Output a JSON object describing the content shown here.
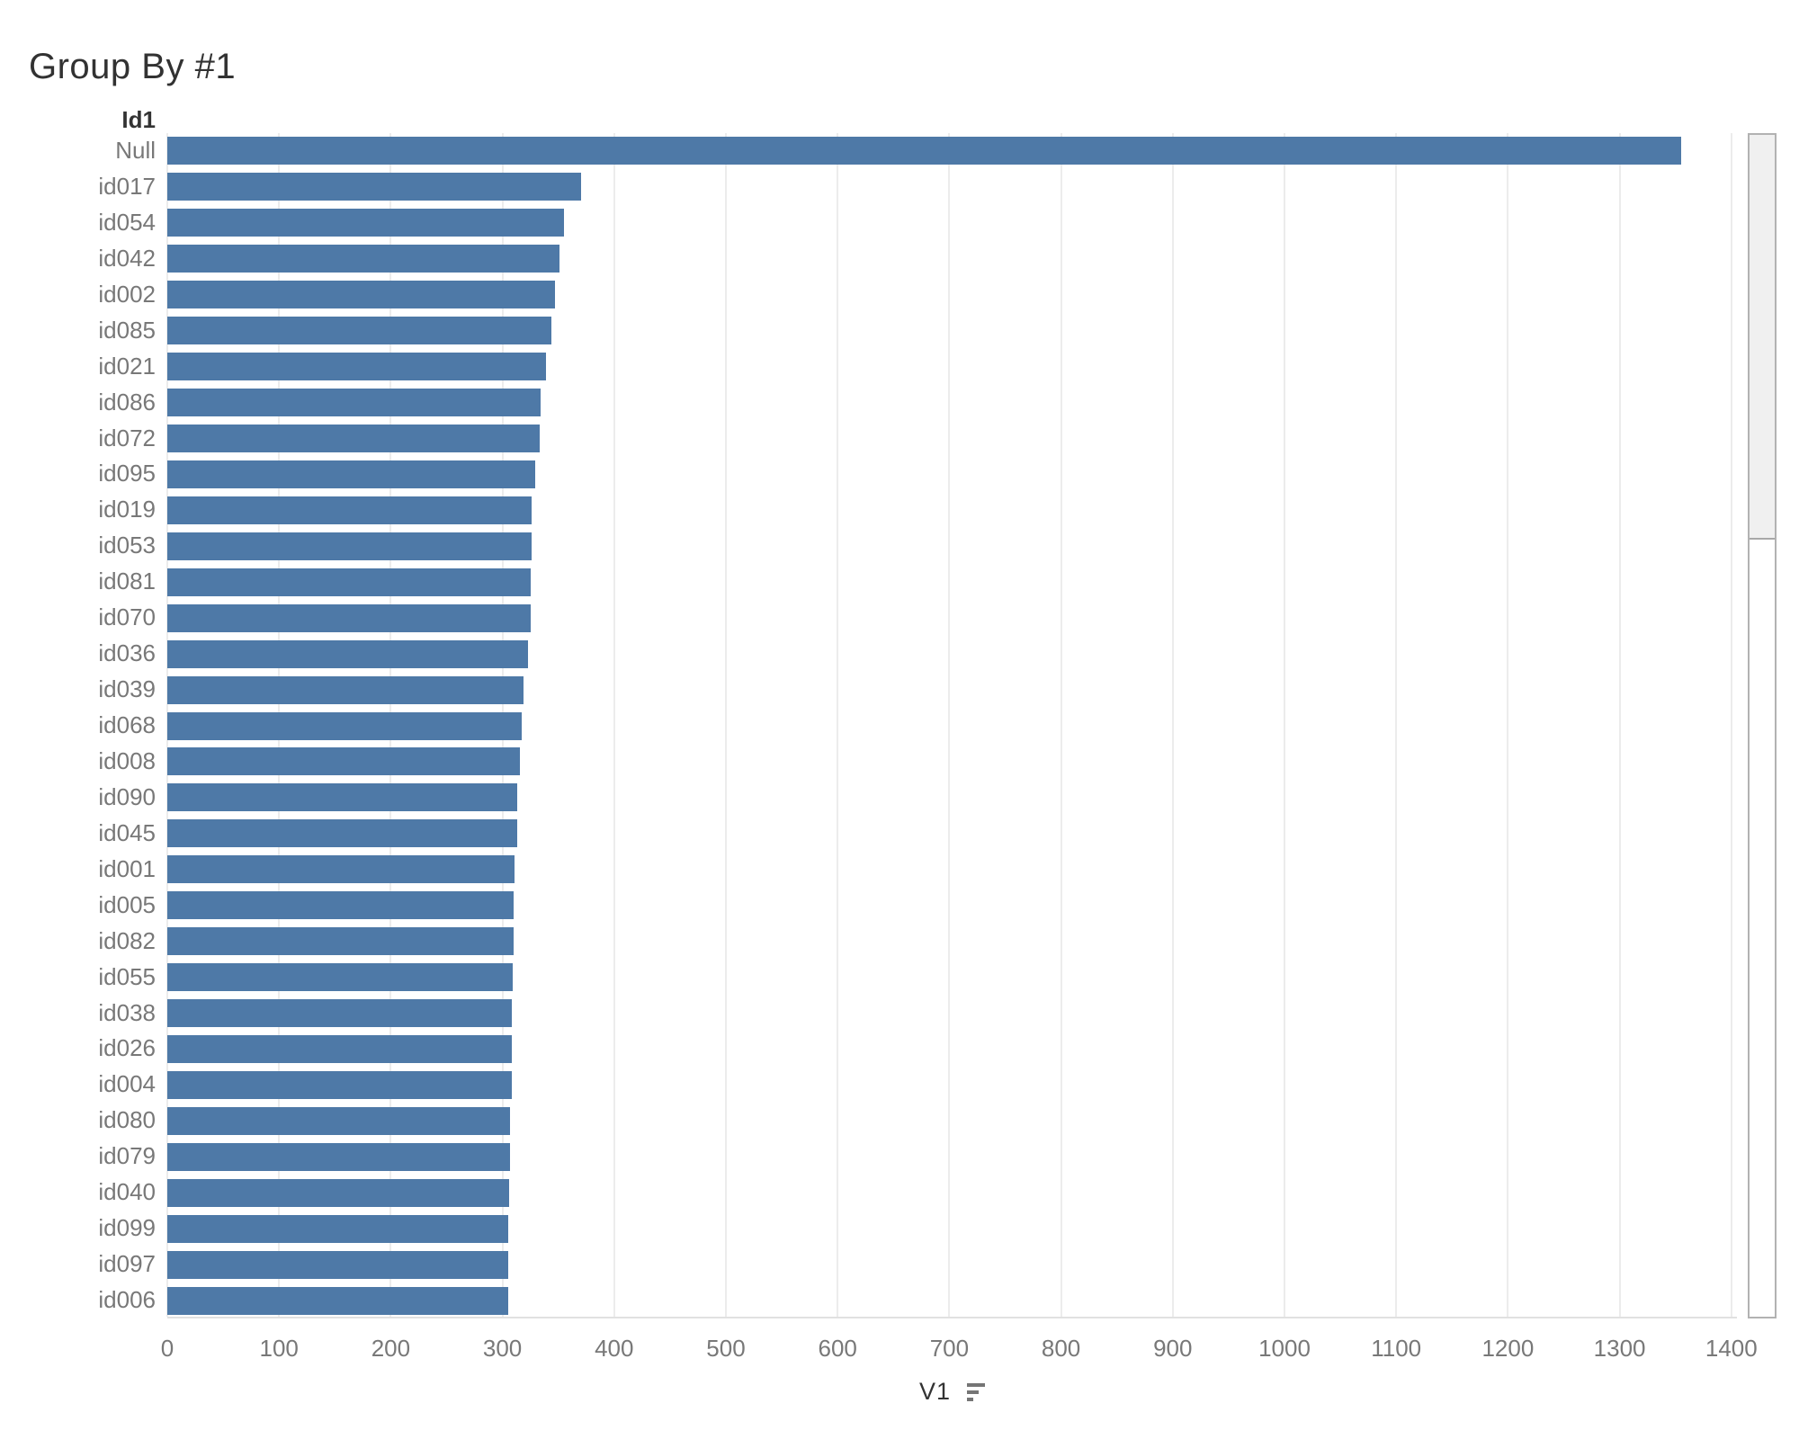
{
  "title": "Group By #1",
  "column_header": "Id1",
  "axis": {
    "label": "V1",
    "sort_icon": "sort-descending-icon"
  },
  "colors": {
    "bar": "#4e79a7",
    "gridline": "#ececec",
    "tick_text": "#787878",
    "row_label_text": "#787878",
    "header_text": "#333333",
    "title_text": "#323232"
  },
  "chart_data": {
    "type": "bar",
    "orientation": "horizontal",
    "title": "Group By #1",
    "xlabel": "V1",
    "ylabel": "Id1",
    "xlim": [
      0,
      1405
    ],
    "x_ticks": [
      0,
      100,
      200,
      300,
      400,
      500,
      600,
      700,
      800,
      900,
      1000,
      1100,
      1200,
      1300,
      1400
    ],
    "grid": true,
    "sort": "descending",
    "categories": [
      "Null",
      "id017",
      "id054",
      "id042",
      "id002",
      "id085",
      "id021",
      "id086",
      "id072",
      "id095",
      "id019",
      "id053",
      "id081",
      "id070",
      "id036",
      "id039",
      "id068",
      "id008",
      "id090",
      "id045",
      "id001",
      "id005",
      "id082",
      "id055",
      "id038",
      "id026",
      "id004",
      "id080",
      "id079",
      "id040",
      "id099",
      "id097",
      "id006"
    ],
    "values": [
      1355,
      370,
      355,
      351,
      347,
      344,
      339,
      334,
      333,
      329,
      326,
      326,
      325,
      325,
      323,
      319,
      317,
      316,
      313,
      313,
      311,
      310,
      310,
      309,
      308,
      308,
      308,
      307,
      307,
      306,
      305,
      305,
      305
    ]
  }
}
